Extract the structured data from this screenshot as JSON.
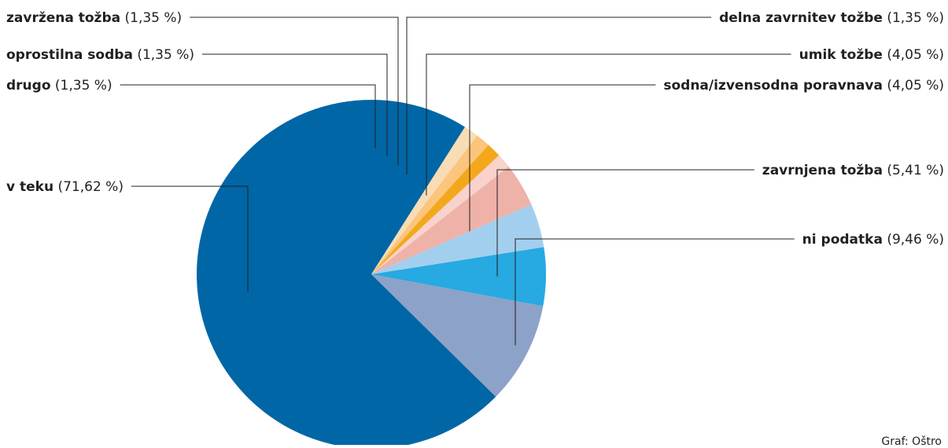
{
  "chart_data": {
    "type": "pie",
    "slices": [
      {
        "name": "ni podatka",
        "value": 9.46,
        "label": "(9,46 %)",
        "color": "#8da2c9"
      },
      {
        "name": "v teku",
        "value": 71.62,
        "label": "(71,62 %)",
        "color": "#0066a6"
      },
      {
        "name": "drugo",
        "value": 1.35,
        "label": "(1,35 %)",
        "color": "#f8dcb4"
      },
      {
        "name": "oprostilna sodba",
        "value": 1.35,
        "label": "(1,35 %)",
        "color": "#fbc57d"
      },
      {
        "name": "zavržena tožba",
        "value": 1.35,
        "label": "(1,35 %)",
        "color": "#f3a81c"
      },
      {
        "name": "delna zavrnitev tožbe",
        "value": 1.35,
        "label": "(1,35 %)",
        "color": "#f9d2cc"
      },
      {
        "name": "umik tožbe",
        "value": 4.05,
        "label": "(4,05 %)",
        "color": "#eeb2a8"
      },
      {
        "name": "sodna/izvensodna poravnava",
        "value": 4.05,
        "label": "(4,05 %)",
        "color": "#a3cfee"
      },
      {
        "name": "zavrnjena tožba",
        "value": 5.41,
        "label": "(5,41 %)",
        "color": "#27a9e1"
      }
    ]
  },
  "credit": "Graf: Oštro"
}
